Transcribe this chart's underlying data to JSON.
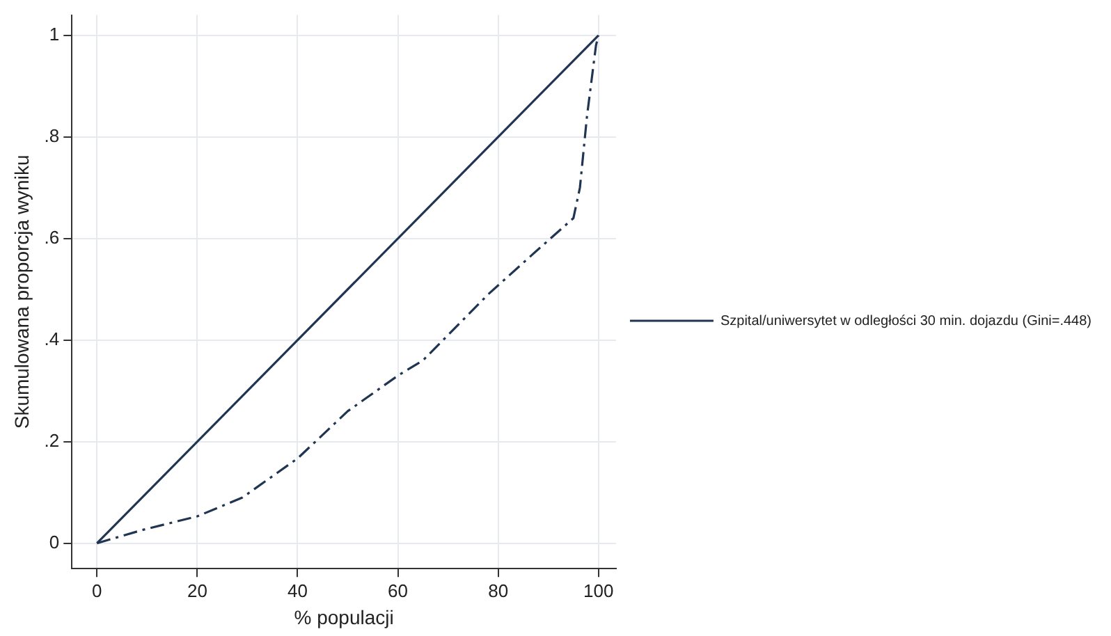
{
  "chart_data": {
    "type": "line",
    "xlabel": "% populacji",
    "ylabel": "Skumulowana proporcja wyniku",
    "xlim": [
      -5,
      103.5
    ],
    "ylim": [
      -0.05,
      1.04
    ],
    "xticks": [
      0,
      20,
      40,
      60,
      80,
      100
    ],
    "yticks": [
      0,
      {
        "value": 0.2,
        "label": ".2"
      },
      {
        "value": 0.4,
        "label": ".4"
      },
      {
        "value": 0.6,
        "label": ".6"
      },
      {
        "value": 0.8,
        "label": ".8"
      },
      1
    ],
    "grid": true,
    "legend": "right",
    "marker": "none",
    "series": [
      {
        "color": "#1f3552",
        "line_style": "solid",
        "x": [
          0,
          100
        ],
        "values": [
          0,
          1
        ]
      },
      {
        "name": "Szpital/uniwersytet w odległości 30 min. dojazdu (Gini=.448)",
        "color": "#1f3552",
        "line_style": "dashed",
        "x": [
          0,
          9,
          20,
          29,
          40,
          50,
          60,
          65,
          78,
          87,
          95,
          96.3,
          97.7,
          99.5,
          100
        ],
        "values": [
          0,
          0.026,
          0.053,
          0.09,
          0.167,
          0.26,
          0.33,
          0.36,
          0.49,
          0.57,
          0.64,
          0.7,
          0.84,
          0.98,
          1
        ]
      }
    ]
  }
}
